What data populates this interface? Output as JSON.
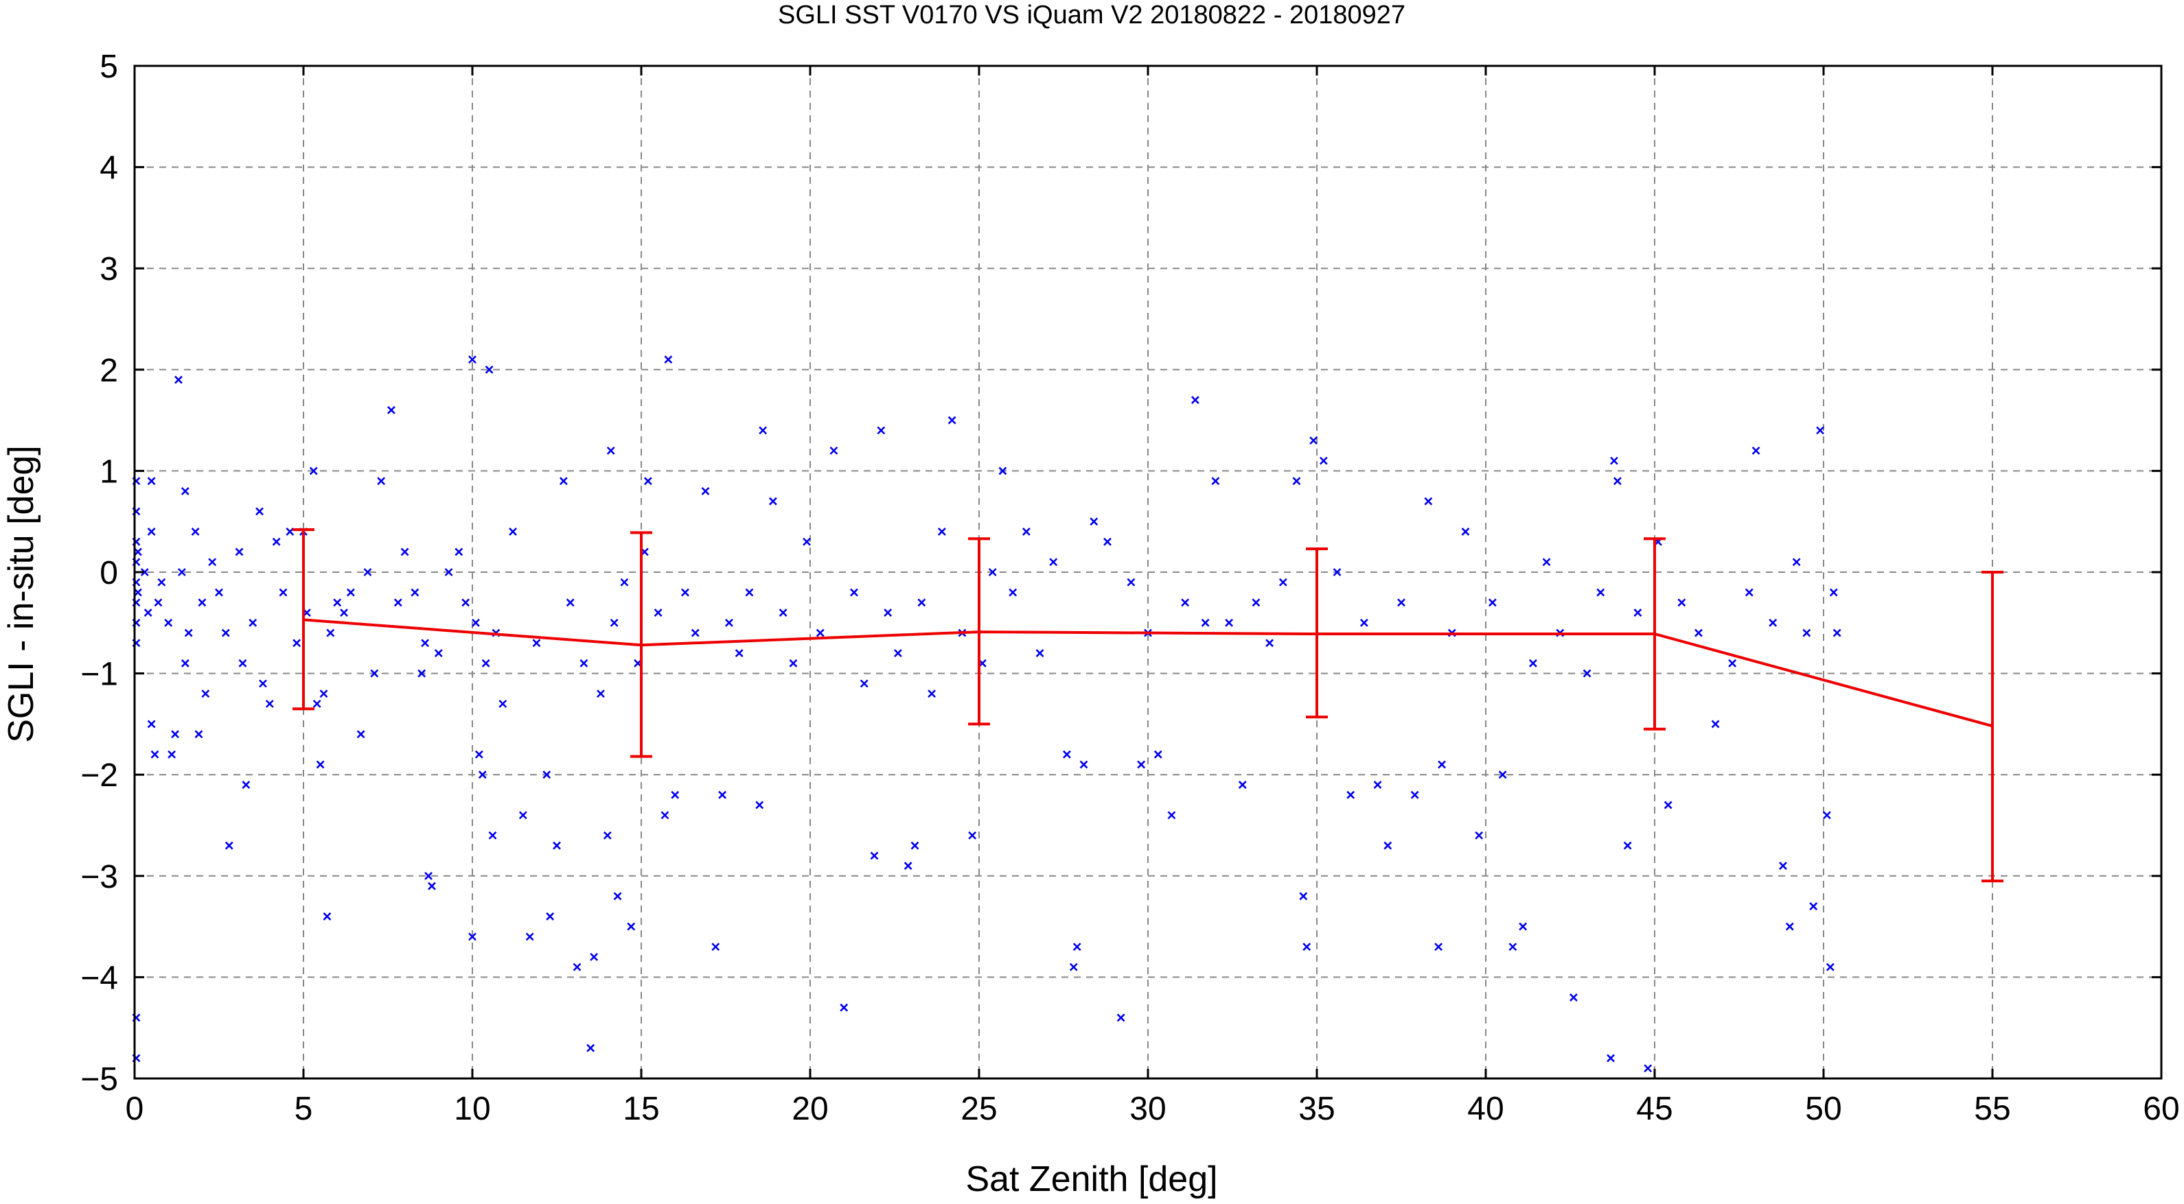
{
  "chart_data": {
    "type": "scatter",
    "title": "SGLI SST V0170 VS iQuam V2 20180822 - 20180927",
    "xlabel": "Sat Zenith [deg]",
    "ylabel": "SGLI - in-situ [deg]",
    "xlim": [
      0,
      60
    ],
    "ylim": [
      -5,
      5
    ],
    "xticks": [
      0,
      5,
      10,
      15,
      20,
      25,
      30,
      35,
      40,
      45,
      50,
      55,
      60
    ],
    "yticks": [
      -5,
      -4,
      -3,
      -2,
      -1,
      0,
      1,
      2,
      3,
      4,
      5
    ],
    "xtick_labels": [
      "0",
      "5",
      "10",
      "15",
      "20",
      "25",
      "30",
      "35",
      "40",
      "45",
      "50",
      "55",
      "60"
    ],
    "ytick_labels": [
      "−5",
      "−4",
      "−3",
      "−2",
      "−1",
      "0",
      "1",
      "2",
      "3",
      "4",
      "5"
    ],
    "grid": true,
    "colors": {
      "scatter": "#0000ee",
      "mean_line": "#ee0000",
      "grid": "#888888",
      "axes": "#000000"
    },
    "scatter_series": {
      "marker": "x",
      "points": [
        [
          0.05,
          0.9
        ],
        [
          0.05,
          0.6
        ],
        [
          0.05,
          0.3
        ],
        [
          0.05,
          0.1
        ],
        [
          0.05,
          -0.1
        ],
        [
          0.05,
          -0.3
        ],
        [
          0.05,
          -0.5
        ],
        [
          0.05,
          -0.7
        ],
        [
          0.05,
          -4.4
        ],
        [
          0.05,
          -4.8
        ],
        [
          0.1,
          0.2
        ],
        [
          0.1,
          -0.2
        ],
        [
          0.3,
          0.0
        ],
        [
          0.4,
          -0.4
        ],
        [
          0.5,
          0.9
        ],
        [
          0.5,
          0.4
        ],
        [
          0.5,
          -1.5
        ],
        [
          0.6,
          -1.8
        ],
        [
          0.7,
          -0.3
        ],
        [
          0.8,
          -0.1
        ],
        [
          1.0,
          -0.5
        ],
        [
          1.1,
          -1.8
        ],
        [
          1.2,
          -1.6
        ],
        [
          1.3,
          1.9
        ],
        [
          1.4,
          0.0
        ],
        [
          1.5,
          0.8
        ],
        [
          1.5,
          -0.9
        ],
        [
          1.6,
          -0.6
        ],
        [
          1.8,
          0.4
        ],
        [
          1.9,
          -1.6
        ],
        [
          2.0,
          -0.3
        ],
        [
          2.1,
          -1.2
        ],
        [
          2.3,
          0.1
        ],
        [
          2.5,
          -0.2
        ],
        [
          2.7,
          -0.6
        ],
        [
          2.8,
          -2.7
        ],
        [
          3.1,
          0.2
        ],
        [
          3.2,
          -0.9
        ],
        [
          3.3,
          -2.1
        ],
        [
          3.5,
          -0.5
        ],
        [
          3.7,
          0.6
        ],
        [
          3.8,
          -1.1
        ],
        [
          4.0,
          -1.3
        ],
        [
          4.2,
          0.3
        ],
        [
          4.4,
          -0.2
        ],
        [
          4.6,
          0.4
        ],
        [
          4.8,
          -0.7
        ],
        [
          5.0,
          0.4
        ],
        [
          5.1,
          -0.4
        ],
        [
          5.3,
          1.0
        ],
        [
          5.4,
          -1.3
        ],
        [
          5.5,
          -1.9
        ],
        [
          5.6,
          -1.2
        ],
        [
          5.7,
          -3.4
        ],
        [
          5.8,
          -0.6
        ],
        [
          6.0,
          -0.3
        ],
        [
          6.2,
          -0.4
        ],
        [
          6.4,
          -0.2
        ],
        [
          6.7,
          -1.6
        ],
        [
          6.9,
          0.0
        ],
        [
          7.1,
          -1.0
        ],
        [
          7.3,
          0.9
        ],
        [
          7.6,
          1.6
        ],
        [
          7.8,
          -0.3
        ],
        [
          8.0,
          0.2
        ],
        [
          8.3,
          -0.2
        ],
        [
          8.5,
          -1.0
        ],
        [
          8.6,
          -0.7
        ],
        [
          8.7,
          -3.0
        ],
        [
          8.8,
          -3.1
        ],
        [
          9.0,
          -0.8
        ],
        [
          9.3,
          0.0
        ],
        [
          9.6,
          0.2
        ],
        [
          9.8,
          -0.3
        ],
        [
          10.0,
          -3.6
        ],
        [
          10.0,
          2.1
        ],
        [
          10.1,
          -0.5
        ],
        [
          10.2,
          -1.8
        ],
        [
          10.3,
          -2.0
        ],
        [
          10.4,
          -0.9
        ],
        [
          10.5,
          2.0
        ],
        [
          10.6,
          -2.6
        ],
        [
          10.7,
          -0.6
        ],
        [
          10.9,
          -1.3
        ],
        [
          11.2,
          0.4
        ],
        [
          11.5,
          -2.4
        ],
        [
          11.7,
          -3.6
        ],
        [
          11.9,
          -0.7
        ],
        [
          12.2,
          -2.0
        ],
        [
          12.3,
          -3.4
        ],
        [
          12.5,
          -2.7
        ],
        [
          12.7,
          0.9
        ],
        [
          12.9,
          -0.3
        ],
        [
          13.1,
          -3.9
        ],
        [
          13.3,
          -0.9
        ],
        [
          13.5,
          -4.7
        ],
        [
          13.6,
          -3.8
        ],
        [
          13.8,
          -1.2
        ],
        [
          14.0,
          -2.6
        ],
        [
          14.1,
          1.2
        ],
        [
          14.2,
          -0.5
        ],
        [
          14.3,
          -3.2
        ],
        [
          14.5,
          -0.1
        ],
        [
          14.7,
          -3.5
        ],
        [
          14.9,
          -0.9
        ],
        [
          15.1,
          0.2
        ],
        [
          15.2,
          0.9
        ],
        [
          15.5,
          -0.4
        ],
        [
          15.7,
          -2.4
        ],
        [
          15.8,
          2.1
        ],
        [
          16.0,
          -2.2
        ],
        [
          16.3,
          -0.2
        ],
        [
          16.6,
          -0.6
        ],
        [
          16.9,
          0.8
        ],
        [
          17.2,
          -3.7
        ],
        [
          17.4,
          -2.2
        ],
        [
          17.6,
          -0.5
        ],
        [
          17.9,
          -0.8
        ],
        [
          18.2,
          -0.2
        ],
        [
          18.5,
          -2.3
        ],
        [
          18.6,
          1.4
        ],
        [
          18.9,
          0.7
        ],
        [
          19.2,
          -0.4
        ],
        [
          19.5,
          -0.9
        ],
        [
          19.9,
          0.3
        ],
        [
          20.3,
          -0.6
        ],
        [
          20.7,
          1.2
        ],
        [
          21.0,
          -4.3
        ],
        [
          21.3,
          -0.2
        ],
        [
          21.6,
          -1.1
        ],
        [
          21.9,
          -2.8
        ],
        [
          22.1,
          1.4
        ],
        [
          22.3,
          -0.4
        ],
        [
          22.6,
          -0.8
        ],
        [
          22.9,
          -2.9
        ],
        [
          23.1,
          -2.7
        ],
        [
          23.3,
          -0.3
        ],
        [
          23.6,
          -1.2
        ],
        [
          23.9,
          0.4
        ],
        [
          24.2,
          1.5
        ],
        [
          24.5,
          -0.6
        ],
        [
          24.8,
          -2.6
        ],
        [
          25.1,
          -0.9
        ],
        [
          25.4,
          0.0
        ],
        [
          25.7,
          1.0
        ],
        [
          26.0,
          -0.2
        ],
        [
          26.4,
          0.4
        ],
        [
          26.8,
          -0.8
        ],
        [
          27.2,
          0.1
        ],
        [
          27.6,
          -1.8
        ],
        [
          27.8,
          -3.9
        ],
        [
          27.9,
          -3.7
        ],
        [
          28.1,
          -1.9
        ],
        [
          28.4,
          0.5
        ],
        [
          28.8,
          0.3
        ],
        [
          29.2,
          -4.4
        ],
        [
          29.5,
          -0.1
        ],
        [
          29.8,
          -1.9
        ],
        [
          30.0,
          -0.6
        ],
        [
          30.3,
          -1.8
        ],
        [
          30.7,
          -2.4
        ],
        [
          31.1,
          -0.3
        ],
        [
          31.4,
          1.7
        ],
        [
          31.7,
          -0.5
        ],
        [
          32.0,
          0.9
        ],
        [
          32.4,
          -0.5
        ],
        [
          32.8,
          -2.1
        ],
        [
          33.2,
          -0.3
        ],
        [
          33.6,
          -0.7
        ],
        [
          34.0,
          -0.1
        ],
        [
          34.4,
          0.9
        ],
        [
          34.6,
          -3.2
        ],
        [
          34.7,
          -3.7
        ],
        [
          34.9,
          1.3
        ],
        [
          35.2,
          1.1
        ],
        [
          35.6,
          0.0
        ],
        [
          36.0,
          -2.2
        ],
        [
          36.4,
          -0.5
        ],
        [
          36.8,
          -2.1
        ],
        [
          37.1,
          -2.7
        ],
        [
          37.5,
          -0.3
        ],
        [
          37.9,
          -2.2
        ],
        [
          38.3,
          0.7
        ],
        [
          38.6,
          -3.7
        ],
        [
          38.7,
          -1.9
        ],
        [
          39.0,
          -0.6
        ],
        [
          39.4,
          0.4
        ],
        [
          39.8,
          -2.6
        ],
        [
          40.2,
          -0.3
        ],
        [
          40.5,
          -2.0
        ],
        [
          40.8,
          -3.7
        ],
        [
          41.1,
          -3.5
        ],
        [
          41.4,
          -0.9
        ],
        [
          41.8,
          0.1
        ],
        [
          42.2,
          -0.6
        ],
        [
          42.6,
          -4.2
        ],
        [
          43.0,
          -1.0
        ],
        [
          43.4,
          -0.2
        ],
        [
          43.7,
          -4.8
        ],
        [
          43.8,
          1.1
        ],
        [
          43.9,
          0.9
        ],
        [
          44.2,
          -2.7
        ],
        [
          44.5,
          -0.4
        ],
        [
          44.8,
          -4.9
        ],
        [
          45.1,
          0.3
        ],
        [
          45.4,
          -2.3
        ],
        [
          45.8,
          -0.3
        ],
        [
          46.3,
          -0.6
        ],
        [
          46.8,
          -1.5
        ],
        [
          47.3,
          -0.9
        ],
        [
          47.8,
          -0.2
        ],
        [
          48.0,
          1.2
        ],
        [
          48.5,
          -0.5
        ],
        [
          48.8,
          -2.9
        ],
        [
          49.0,
          -3.5
        ],
        [
          49.2,
          0.1
        ],
        [
          49.5,
          -0.6
        ],
        [
          49.7,
          -3.3
        ],
        [
          49.9,
          1.4
        ],
        [
          50.1,
          -2.4
        ],
        [
          50.2,
          -3.9
        ],
        [
          50.3,
          -0.2
        ],
        [
          50.4,
          -0.6
        ]
      ]
    },
    "mean_series": {
      "x": [
        5,
        15,
        25,
        35,
        45,
        55
      ],
      "y": [
        -0.47,
        -0.72,
        -0.59,
        -0.61,
        -0.61,
        -1.52
      ],
      "err_low": [
        -1.35,
        -1.82,
        -1.5,
        -1.43,
        -1.55,
        -3.05
      ],
      "err_high": [
        0.42,
        0.39,
        0.33,
        0.23,
        0.33,
        0.0
      ]
    }
  }
}
